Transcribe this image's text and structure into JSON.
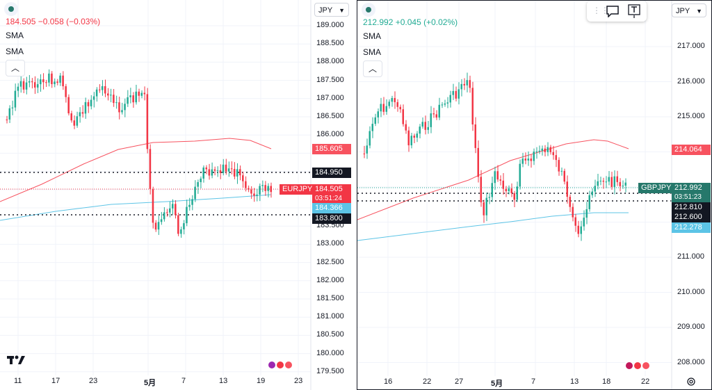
{
  "panels": [
    {
      "id": "left",
      "price_line": "184.505  −0.058 (−0.03%)",
      "price_color": "#f23645",
      "indicators": [
        "SMA",
        "SMA"
      ],
      "currency": "JPY",
      "y_ticks": [
        "189.000",
        "188.500",
        "188.000",
        "187.500",
        "187.000",
        "186.500",
        "186.000",
        "185.500",
        "185.000",
        "184.500",
        "184.000",
        "183.500",
        "183.000",
        "182.500",
        "182.000",
        "181.500",
        "181.000",
        "180.500",
        "180.000",
        "179.500"
      ],
      "x_ticks": [
        "11",
        "17",
        "23",
        "5月",
        "7",
        "13",
        "19",
        "23"
      ],
      "badges": [
        {
          "text": "185.605",
          "color": "#f7525f",
          "kind": "sma-red"
        },
        {
          "text": "184.950",
          "color": "#131722",
          "kind": "line"
        },
        {
          "text": "EURJPY",
          "color": "#f23645",
          "kind": "symbol"
        },
        {
          "text": "184.505",
          "color": "#f23645",
          "kind": "last"
        },
        {
          "text": "03:51:24",
          "color": "#f23645",
          "kind": "countdown"
        },
        {
          "text": "184.366",
          "color": "#5cc4e6",
          "kind": "sma-blue"
        },
        {
          "text": "183.800",
          "color": "#131722",
          "kind": "line"
        }
      ]
    },
    {
      "id": "right",
      "price_line": "212.992  +0.045 (+0.02%)",
      "price_color": "#22ab94",
      "indicators": [
        "SMA",
        "SMA"
      ],
      "currency": "JPY",
      "y_ticks": [
        "217.000",
        "216.000",
        "215.000",
        "214.000",
        "213.000",
        "212.000",
        "211.000",
        "210.000",
        "209.000",
        "208.000"
      ],
      "x_ticks": [
        "16",
        "22",
        "27",
        "5月",
        "7",
        "13",
        "18",
        "22"
      ],
      "badges": [
        {
          "text": "214.064",
          "color": "#f7525f",
          "kind": "sma-red"
        },
        {
          "text": "GBPJPY",
          "color": "#26786b",
          "kind": "symbol"
        },
        {
          "text": "212.992",
          "color": "#26786b",
          "kind": "last"
        },
        {
          "text": "03:51:23",
          "color": "#26786b",
          "kind": "countdown"
        },
        {
          "text": "212.810",
          "color": "#131722",
          "kind": "line"
        },
        {
          "text": "212.600",
          "color": "#131722",
          "kind": "line"
        },
        {
          "text": "212.278",
          "color": "#5cc4e6",
          "kind": "sma-blue"
        }
      ]
    }
  ],
  "icons": [
    "drag-handle-icon",
    "comment-icon",
    "text-tool-icon",
    "settings-icon",
    "collapse-icon",
    "logo-icon",
    "lightning-event-icon",
    "flag-event-icon"
  ],
  "colors": {
    "up": "#22ab94",
    "down": "#f23645",
    "sma_red": "#f7525f",
    "sma_blue": "#5cc4e6",
    "grid": "#f0f3fa"
  },
  "logo_text": "TV",
  "collapse_glyph": "^"
}
